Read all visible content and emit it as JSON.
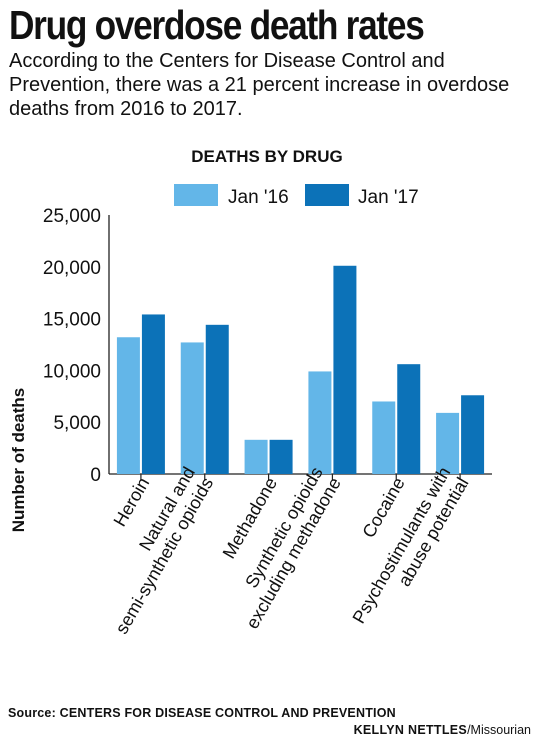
{
  "header": {
    "title": "Drug overdose death rates",
    "subtitle": "According to the Centers for Disease Control and Prevention, there was a 21 percent increase in overdose deaths from 2016 to 2017."
  },
  "footer": {
    "source_label": "Source:",
    "source_text": "CENTERS FOR DISEASE CONTROL AND PREVENTION",
    "credit_name": "KELLYN NETTLES",
    "credit_org": "/Missourian"
  },
  "chart_data": {
    "type": "bar",
    "title": "DEATHS BY DRUG",
    "xlabel": "",
    "ylabel": "Number of deaths",
    "ylim": [
      0,
      25000
    ],
    "yticks": [
      0,
      5000,
      10000,
      15000,
      20000,
      25000
    ],
    "ytick_labels": [
      "0",
      "5,000",
      "10,000",
      "15,000",
      "20,000",
      "25,000"
    ],
    "grid": false,
    "legend": "top",
    "categories": [
      [
        "Heroin"
      ],
      [
        "Natural and",
        "semi-synthetic opioids"
      ],
      [
        "Methadone"
      ],
      [
        "Synthetic opioids",
        "excluding methadone"
      ],
      [
        "Cocaine"
      ],
      [
        "Psychostimulants with",
        "abuse potential"
      ]
    ],
    "series": [
      {
        "name": "Jan '16",
        "color": "#63b6e8",
        "values": [
          13200,
          12700,
          3300,
          9900,
          7000,
          5900
        ]
      },
      {
        "name": "Jan '17",
        "color": "#0c72b8",
        "values": [
          15400,
          14400,
          3300,
          20100,
          10600,
          7600
        ]
      }
    ]
  }
}
